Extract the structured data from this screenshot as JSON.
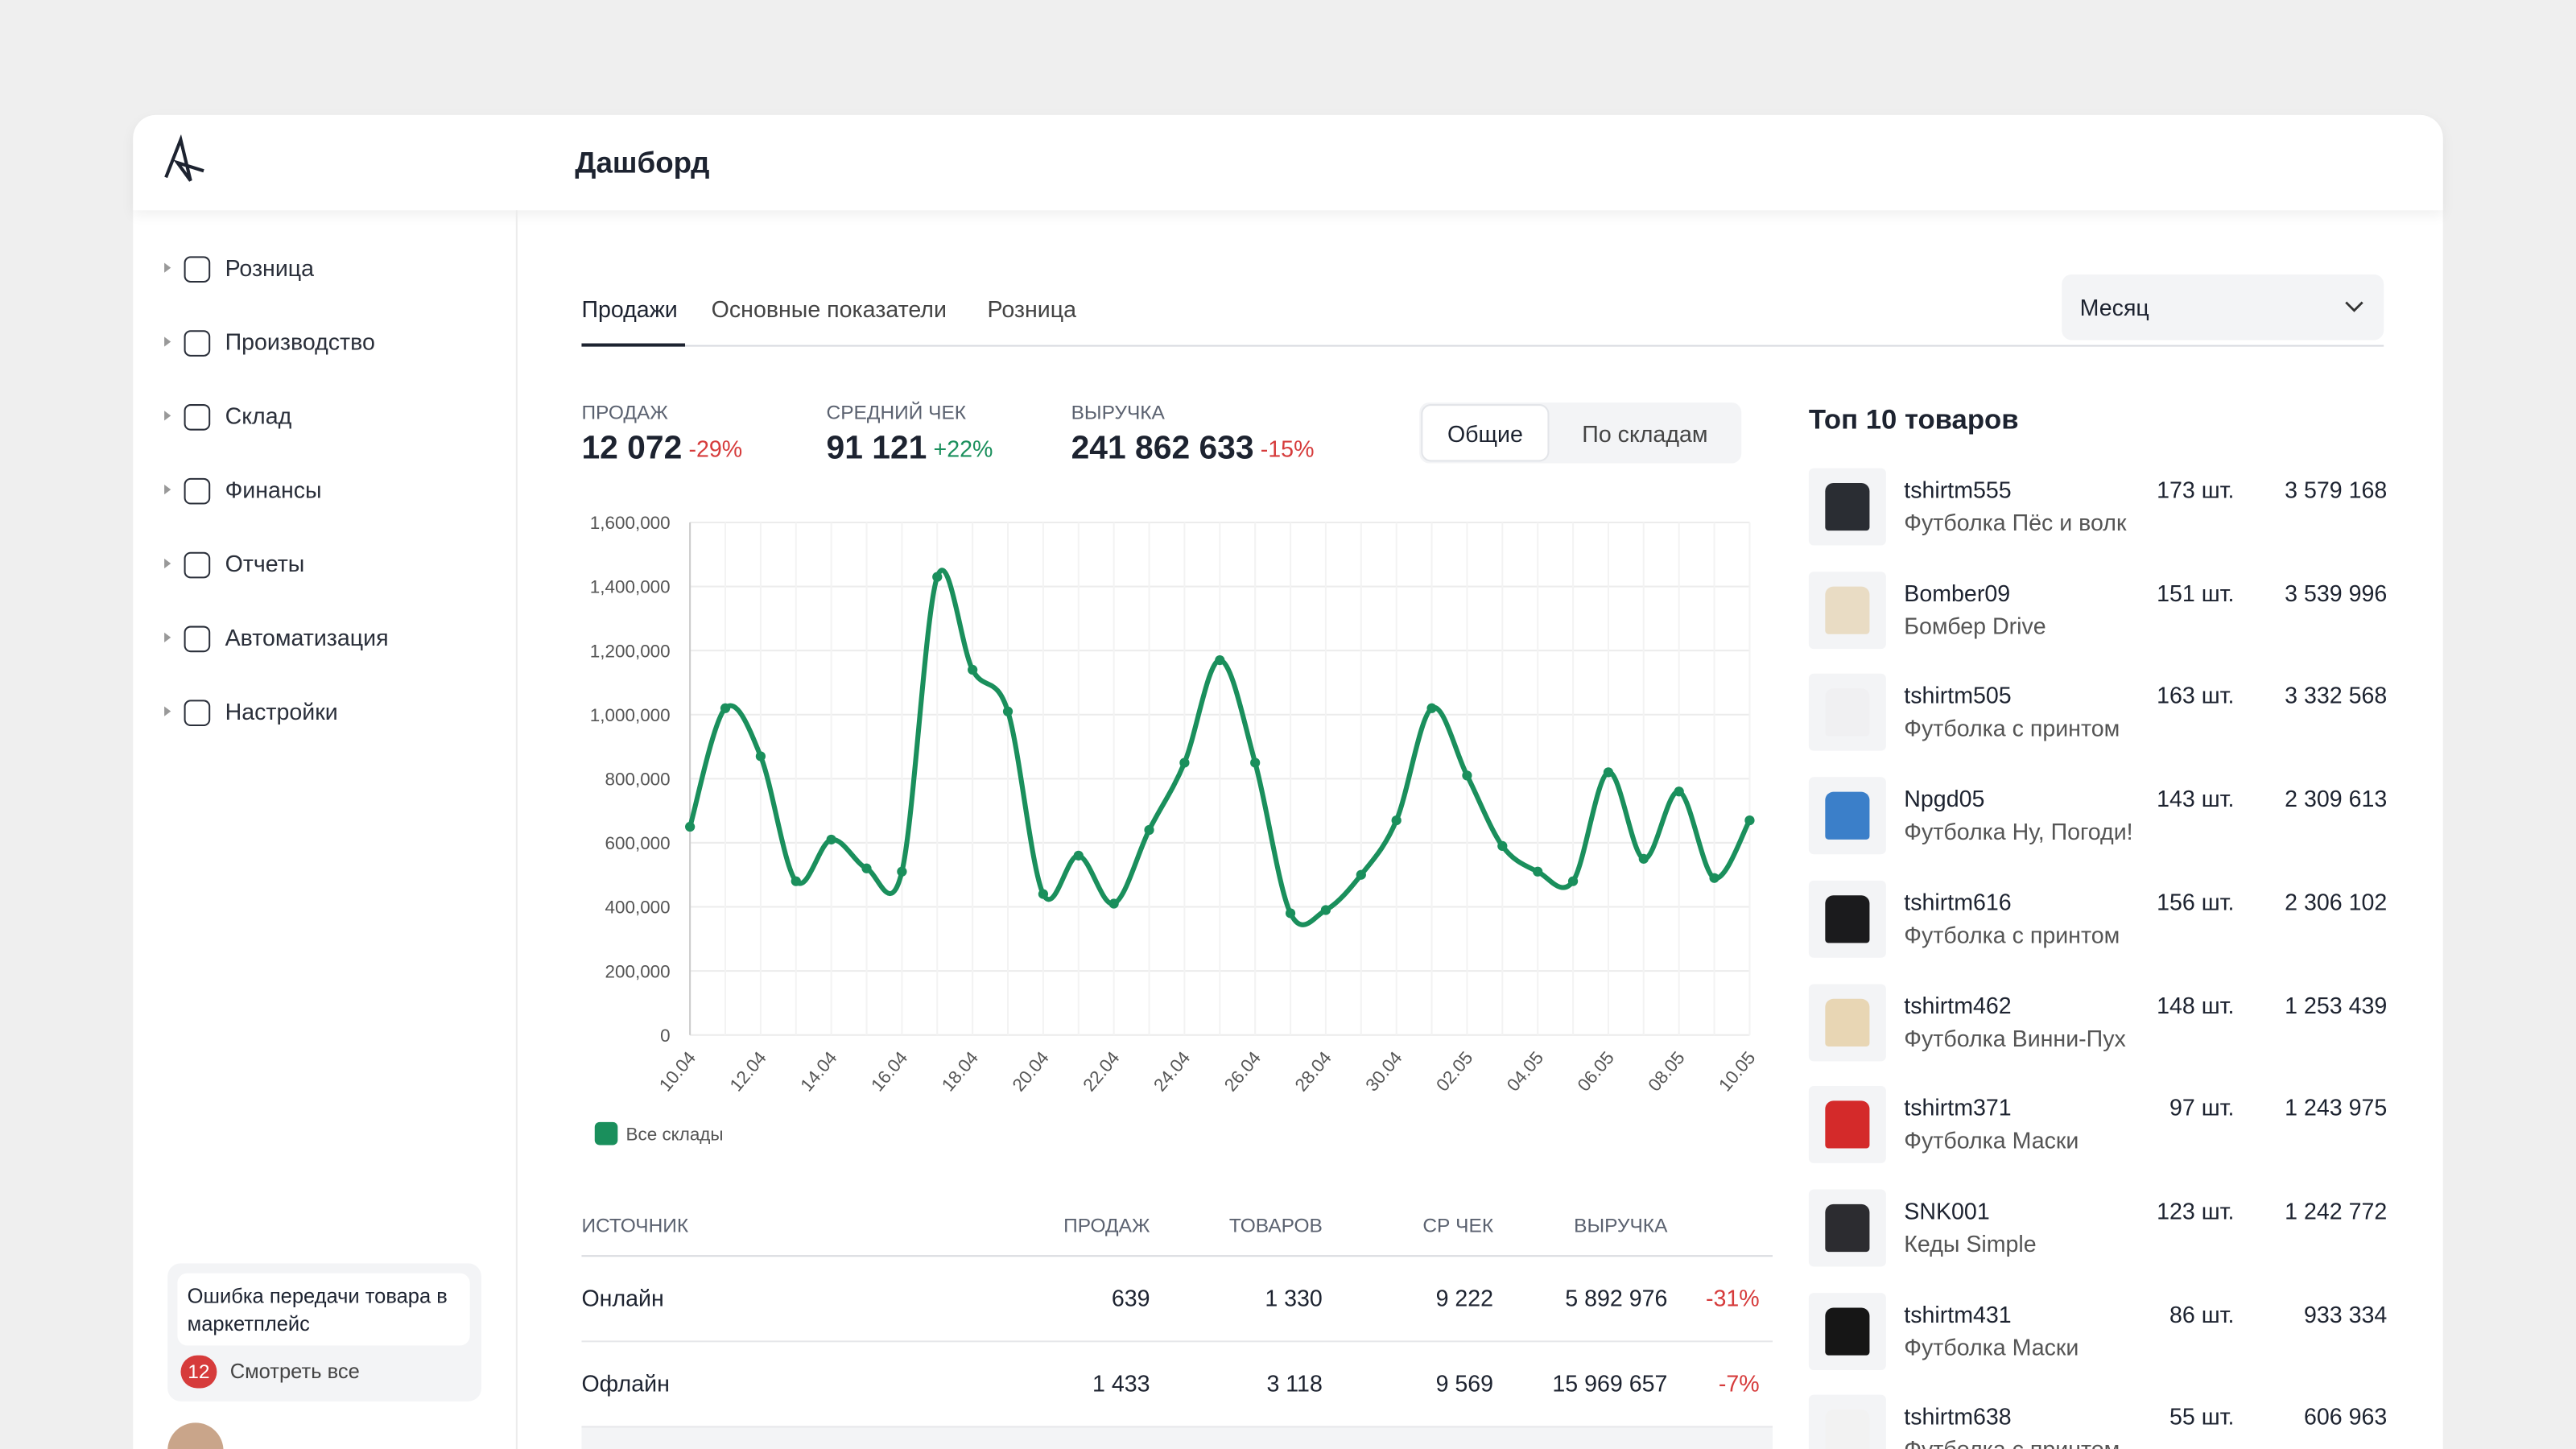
{
  "header": {
    "title": "Дашборд"
  },
  "sidebar": {
    "items": [
      "Розница",
      "Производство",
      "Склад",
      "Финансы",
      "Отчеты",
      "Автоматизация",
      "Настройки"
    ],
    "notification": {
      "text": "Ошибка передачи товара в маркетплейс",
      "count": 12,
      "link": "Смотреть все"
    }
  },
  "tabs": [
    "Продажи",
    "Основные показатели",
    "Розница"
  ],
  "period": "Месяц",
  "kpis": [
    {
      "label": "ПРОДАЖ",
      "value": "12 072",
      "change": "-29%"
    },
    {
      "label": "СРЕДНИЙ ЧЕК",
      "value": "91 121",
      "change": "+22%"
    },
    {
      "label": "ВЫРУЧКА",
      "value": "241 862 633",
      "change": "-15%"
    }
  ],
  "toggle": [
    "Общие",
    "По складам"
  ],
  "chart_data": {
    "type": "line",
    "categories": [
      "10.04",
      null,
      "12.04",
      null,
      "14.04",
      null,
      "16.04",
      null,
      "18.04",
      null,
      "20.04",
      null,
      "22.04",
      null,
      "24.04",
      null,
      "26.04",
      null,
      "28.04",
      null,
      "30.04",
      null,
      "02.05",
      null,
      "04.05",
      null,
      "06.05",
      null,
      "08.05",
      null,
      "10.05"
    ],
    "series": [
      {
        "name": "Все склады",
        "color": "#1a8f5c",
        "values": [
          650000,
          1020000,
          870000,
          480000,
          610000,
          520000,
          510000,
          1430000,
          1140000,
          1010000,
          440000,
          560000,
          410000,
          640000,
          850000,
          1170000,
          850000,
          380000,
          390000,
          500000,
          670000,
          1020000,
          810000,
          590000,
          510000,
          480000,
          820000,
          550000,
          760000,
          490000,
          670000
        ]
      }
    ],
    "ylim": [
      0,
      1600000
    ],
    "yticks": [
      0,
      {
        "value": 200000,
        "label": "200,000"
      },
      {
        "value": 400000,
        "label": "400,000"
      },
      {
        "value": 600000,
        "label": "600,000"
      },
      {
        "value": 800000,
        "label": "800,000"
      },
      {
        "value": 1000000,
        "label": "1,000,000"
      },
      {
        "value": 1200000,
        "label": "1,200,000"
      },
      {
        "value": 1400000,
        "label": "1,400,000"
      },
      {
        "value": 1600000,
        "label": "1,600,000"
      }
    ],
    "grid": true
  },
  "sources_table": {
    "columns": [
      "ИСТОЧНИК",
      "ПРОДАЖ",
      "ТОВАРОВ",
      "СР ЧЕК",
      "ВЫРУЧКА"
    ],
    "rows": [
      [
        "Онлайн",
        "639",
        "1 330",
        "9 222",
        "5 892 976",
        "-31%"
      ],
      [
        "Офлайн",
        "1 433",
        "3 118",
        "9 569",
        "15 969 657",
        "-7%"
      ]
    ]
  },
  "top": {
    "title": "Топ 10 товаров",
    "items": [
      {
        "sku": "tshirtm555",
        "name": "Футболка Пёс и волк",
        "qty": "173 шт.",
        "revenue": "3 579 168"
      },
      {
        "sku": "Bomber09",
        "name": "Бомбер Drive",
        "qty": "151 шт.",
        "revenue": "3 539 996"
      },
      {
        "sku": "tshirtm505",
        "name": "Футболка с принтом",
        "qty": "163 шт.",
        "revenue": "3 332 568"
      },
      {
        "sku": "Npgd05",
        "name": "Футболка Ну, Погоди!",
        "qty": "143 шт.",
        "revenue": "2 309 613"
      },
      {
        "sku": "tshirtm616",
        "name": "Футболка с принтом",
        "qty": "156 шт.",
        "revenue": "2 306 102"
      },
      {
        "sku": "tshirtm462",
        "name": "Футболка Винни-Пух",
        "qty": "148 шт.",
        "revenue": "1 253 439"
      },
      {
        "sku": "tshirtm371",
        "name": "Футболка Маски",
        "qty": "97 шт.",
        "revenue": "1 243 975"
      },
      {
        "sku": "SNK001",
        "name": "Кеды Simple",
        "qty": "123 шт.",
        "revenue": "1 242 772"
      },
      {
        "sku": "tshirtm431",
        "name": "Футболка Маски",
        "qty": "86 шт.",
        "revenue": "933 334"
      },
      {
        "sku": "tshirtm638",
        "name": "Футболка с принтом",
        "qty": "55 шт.",
        "revenue": "606 963"
      }
    ]
  }
}
